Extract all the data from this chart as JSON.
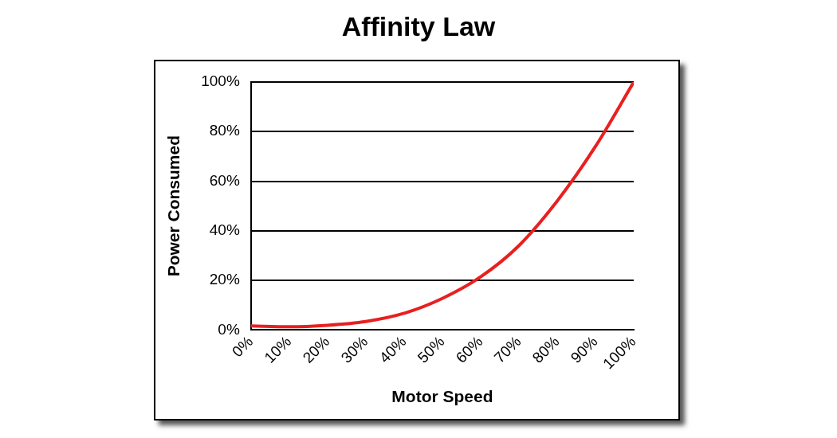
{
  "chart_data": {
    "type": "line",
    "title": "Affinity Law",
    "xlabel": "Motor Speed",
    "ylabel": "Power Consumed",
    "x": [
      0,
      10,
      20,
      30,
      40,
      50,
      60,
      70,
      80,
      90,
      100
    ],
    "series": [
      {
        "color": "#e82020",
        "values": [
          1.6,
          1.3,
          1.9,
          3.4,
          6.7,
          12.7,
          21.4,
          34,
          52,
          74,
          100
        ]
      }
    ],
    "xlim": [
      0,
      100
    ],
    "ylim": [
      0,
      100
    ],
    "xticks": [
      {
        "value": 0,
        "label": "0%"
      },
      {
        "value": 10,
        "label": "10%"
      },
      {
        "value": 20,
        "label": "20%"
      },
      {
        "value": 30,
        "label": "30%"
      },
      {
        "value": 40,
        "label": "40%"
      },
      {
        "value": 50,
        "label": "50%"
      },
      {
        "value": 60,
        "label": "60%"
      },
      {
        "value": 70,
        "label": "70%"
      },
      {
        "value": 80,
        "label": "80%"
      },
      {
        "value": 90,
        "label": "90%"
      },
      {
        "value": 100,
        "label": "100%"
      }
    ],
    "yticks": [
      {
        "value": 0,
        "label": "0%"
      },
      {
        "value": 20,
        "label": "20%"
      },
      {
        "value": 40,
        "label": "40%"
      },
      {
        "value": 60,
        "label": "60%"
      },
      {
        "value": 80,
        "label": "80%"
      },
      {
        "value": 100,
        "label": "100%"
      }
    ],
    "grid": "y",
    "marker": "none",
    "line_style": "solid"
  }
}
